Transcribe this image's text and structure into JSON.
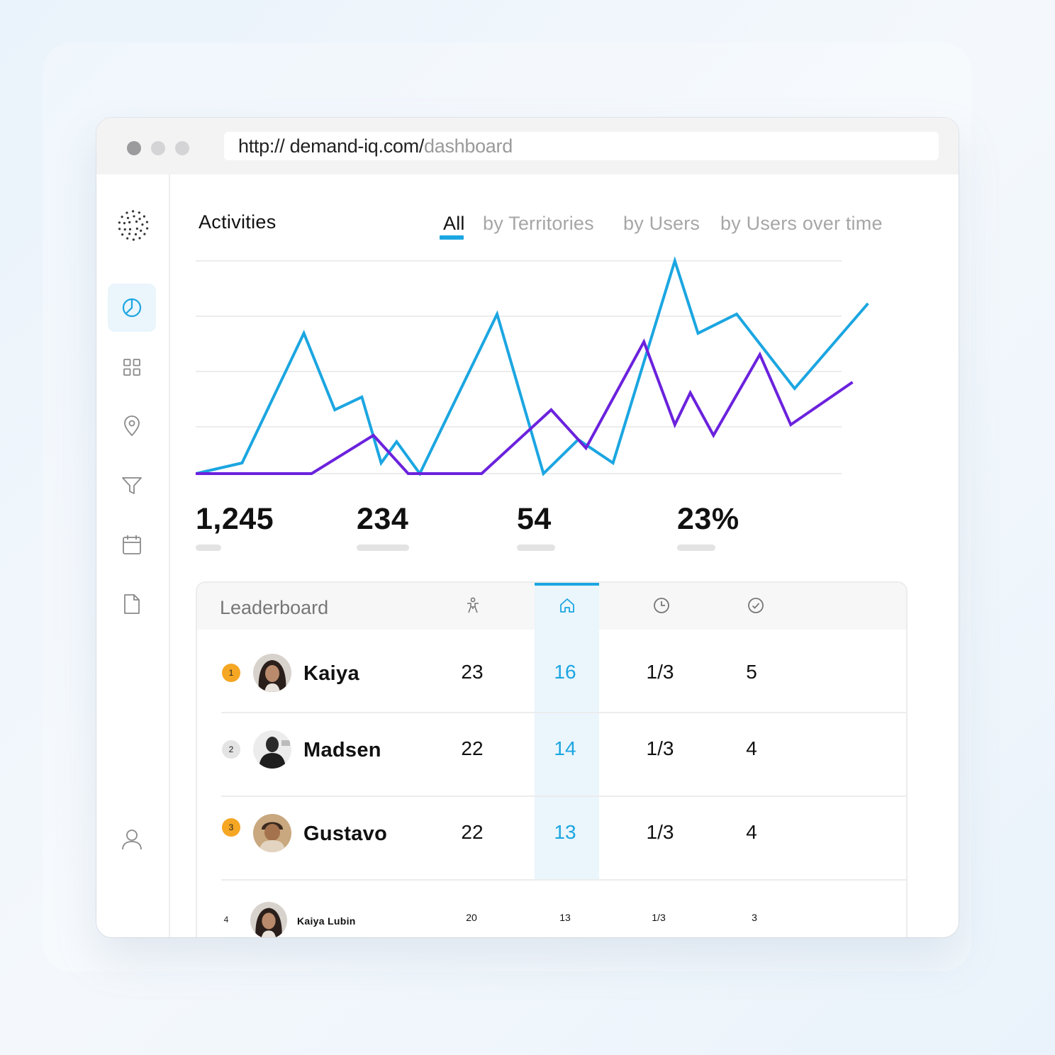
{
  "browser": {
    "url_base": "http:// demand-iq.com/",
    "url_path": "dashboard"
  },
  "sidebar": {
    "items": [
      {
        "name": "dashboard",
        "icon": "pie-chart-icon",
        "active": true
      },
      {
        "name": "grid",
        "icon": "grid-icon"
      },
      {
        "name": "map",
        "icon": "location-pin-icon"
      },
      {
        "name": "filter",
        "icon": "filter-icon"
      },
      {
        "name": "calendar",
        "icon": "calendar-icon"
      },
      {
        "name": "documents",
        "icon": "document-icon"
      },
      {
        "name": "profile",
        "icon": "user-icon"
      }
    ]
  },
  "activities": {
    "title": "Activities",
    "tabs": [
      {
        "label": "All",
        "active": true
      },
      {
        "label": "by Territories"
      },
      {
        "label": "by Users"
      },
      {
        "label": "by Users over time"
      }
    ]
  },
  "chart_data": {
    "type": "line",
    "grid": true,
    "legend": "none",
    "ylim": [
      0,
      100
    ],
    "series": [
      {
        "color": "#1ba6e1",
        "points": [
          [
            0,
            0
          ],
          [
            6,
            5
          ],
          [
            14,
            66
          ],
          [
            18,
            30
          ],
          [
            21.5,
            36
          ],
          [
            24,
            5
          ],
          [
            26,
            15
          ],
          [
            29,
            0
          ],
          [
            39,
            75
          ],
          [
            45,
            0
          ],
          [
            49.5,
            16
          ],
          [
            54,
            5
          ],
          [
            62,
            100
          ],
          [
            65,
            66
          ],
          [
            70,
            75
          ],
          [
            77.5,
            40
          ],
          [
            87,
            80
          ]
        ]
      },
      {
        "color": "#6b22dd",
        "points": [
          [
            0,
            0
          ],
          [
            15,
            0
          ],
          [
            23,
            18
          ],
          [
            27.5,
            0
          ],
          [
            37,
            0
          ],
          [
            46,
            30
          ],
          [
            50.5,
            12
          ],
          [
            58,
            62
          ],
          [
            62,
            23
          ],
          [
            64,
            38
          ],
          [
            67,
            18
          ],
          [
            73,
            56
          ],
          [
            77,
            23
          ],
          [
            85,
            43
          ]
        ]
      }
    ]
  },
  "stats": [
    {
      "value": "1,245"
    },
    {
      "value": "234"
    },
    {
      "value": "54"
    },
    {
      "value": "23%"
    }
  ],
  "leaderboard": {
    "title": "Leaderboard",
    "columns": [
      {
        "icon": "person-icon"
      },
      {
        "icon": "home-icon",
        "highlighted": true
      },
      {
        "icon": "clock-icon"
      },
      {
        "icon": "check-circle-icon"
      }
    ],
    "rows": [
      {
        "rank": "1",
        "rank_color": "#f5a623",
        "name": "Kaiya",
        "values": [
          "23",
          "16",
          "1/3",
          "5"
        ]
      },
      {
        "rank": "2",
        "rank_color": "#e4e4e4",
        "name": "Madsen",
        "values": [
          "22",
          "14",
          "1/3",
          "4"
        ]
      },
      {
        "rank": "3",
        "rank_color": "#f5a623",
        "name": "Gustavo",
        "values": [
          "22",
          "13",
          "1/3",
          "4"
        ]
      },
      {
        "rank": "4",
        "name": "Kaiya Lubin",
        "values": [
          "20",
          "13",
          "1/3",
          "3"
        ]
      }
    ]
  }
}
